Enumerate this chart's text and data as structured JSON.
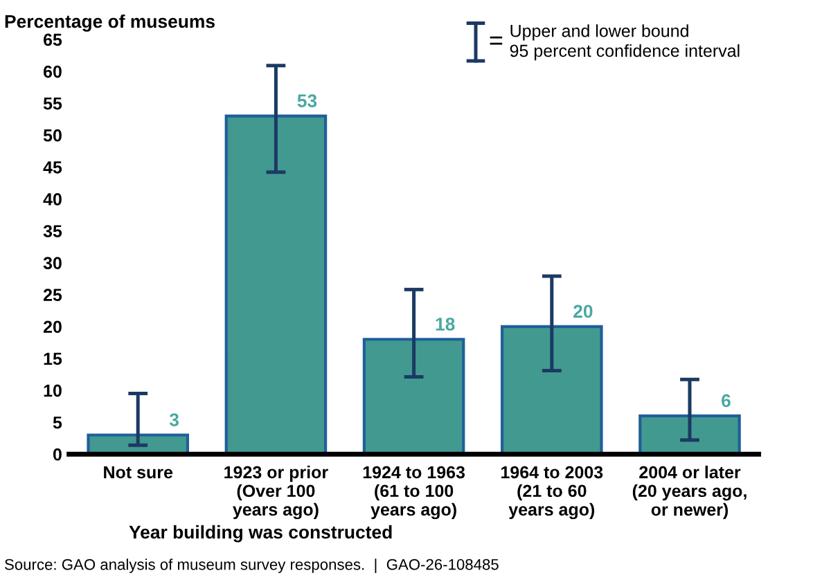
{
  "chart_data": {
    "type": "bar",
    "ylabel": "Percentage of museums",
    "xlabel": "Year building was constructed",
    "categories": [
      "Not sure",
      "1923 or prior\n(Over 100\nyears ago)",
      "1924 to 1963\n(61 to 100\nyears ago)",
      "1964 to 2003\n(21 to 60\nyears ago)",
      "2004 or later\n(20 years ago,\nor newer)"
    ],
    "values": [
      3,
      53,
      18,
      20,
      6
    ],
    "errors": [
      [
        1.4,
        9.5
      ],
      [
        44.2,
        60.9
      ],
      [
        12.1,
        25.8
      ],
      [
        13.1,
        27.9
      ],
      [
        2.2,
        11.7
      ]
    ],
    "color": "#429990",
    "data_labels": true,
    "ylim": [
      0,
      65
    ],
    "yticks": [
      0,
      5,
      10,
      15,
      20,
      25,
      30,
      35,
      40,
      45,
      50,
      55,
      60,
      65
    ],
    "grid": false,
    "legend": false,
    "annotations": [
      "=",
      "Upper and lower bound\n95 percent confidence interval",
      "Source: GAO analysis of museum survey responses.  |  GAO-26-108485"
    ]
  }
}
